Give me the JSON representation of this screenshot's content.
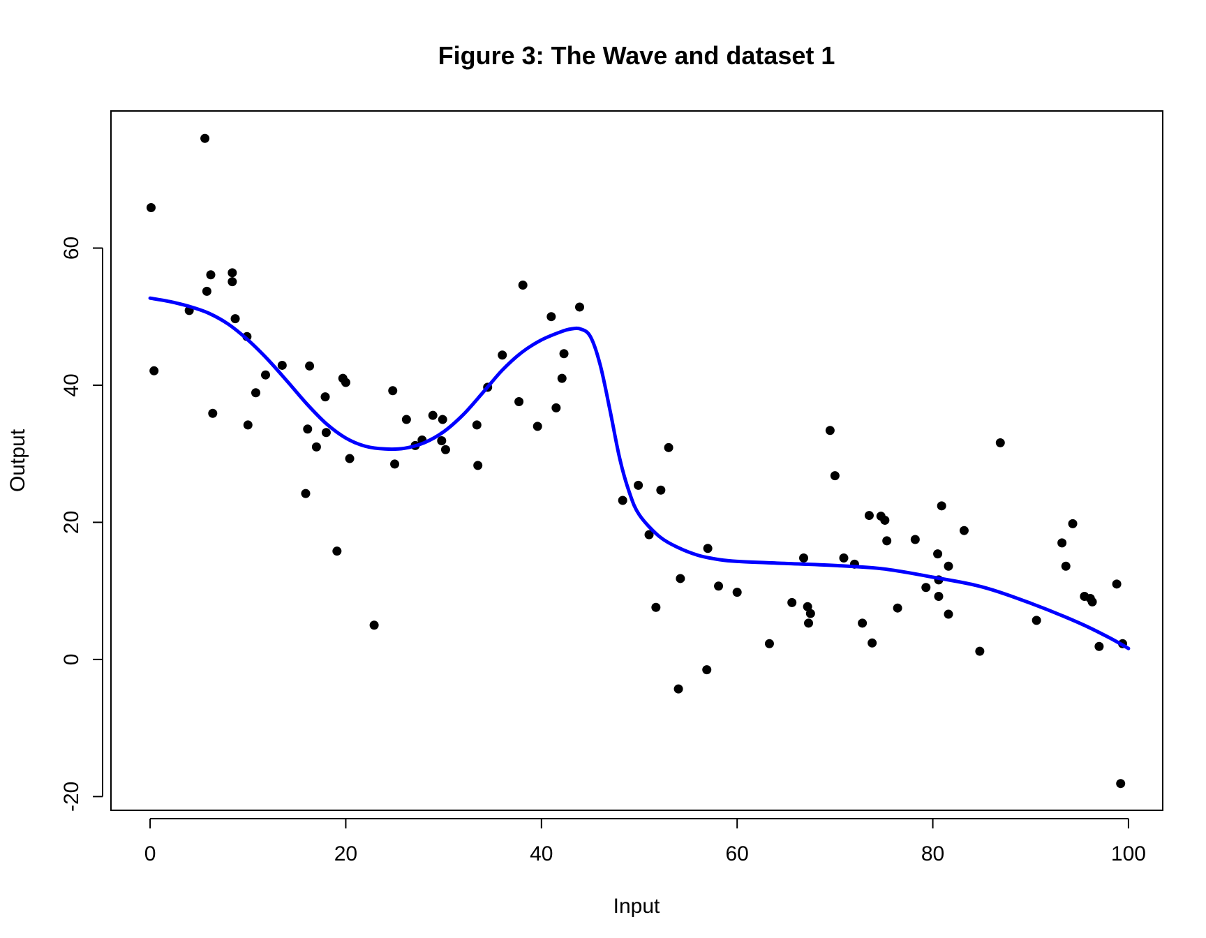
{
  "chart_data": {
    "type": "scatter",
    "title": "Figure 3: The Wave and dataset 1",
    "xlabel": "Input",
    "ylabel": "Output",
    "xlim": [
      -4,
      103.5
    ],
    "ylim": [
      -22,
      80
    ],
    "xticks": [
      0,
      20,
      40,
      60,
      80,
      100
    ],
    "yticks": [
      -20,
      0,
      20,
      40,
      60
    ],
    "grid": false,
    "points_color": "#000000",
    "curve_color": "#0000ff",
    "points": [
      [
        0.1,
        65.9
      ],
      [
        0.4,
        42.1
      ],
      [
        4.0,
        50.9
      ],
      [
        5.6,
        76.0
      ],
      [
        5.8,
        53.7
      ],
      [
        6.2,
        56.1
      ],
      [
        6.4,
        35.9
      ],
      [
        8.4,
        56.4
      ],
      [
        8.4,
        55.1
      ],
      [
        8.7,
        49.7
      ],
      [
        9.9,
        47.1
      ],
      [
        10.0,
        34.2
      ],
      [
        10.8,
        38.9
      ],
      [
        11.8,
        41.5
      ],
      [
        13.5,
        42.9
      ],
      [
        15.9,
        24.2
      ],
      [
        16.1,
        33.6
      ],
      [
        16.3,
        42.8
      ],
      [
        17.0,
        31.0
      ],
      [
        17.9,
        38.3
      ],
      [
        18.0,
        33.1
      ],
      [
        19.1,
        15.8
      ],
      [
        19.7,
        41.0
      ],
      [
        20.0,
        40.4
      ],
      [
        20.4,
        29.3
      ],
      [
        22.9,
        5.0
      ],
      [
        24.8,
        39.2
      ],
      [
        25.0,
        28.5
      ],
      [
        26.2,
        35.0
      ],
      [
        27.1,
        31.2
      ],
      [
        27.8,
        32.0
      ],
      [
        28.9,
        35.6
      ],
      [
        29.8,
        31.9
      ],
      [
        29.9,
        35.0
      ],
      [
        30.2,
        30.6
      ],
      [
        33.4,
        34.2
      ],
      [
        33.5,
        28.3
      ],
      [
        34.5,
        39.7
      ],
      [
        36.0,
        44.4
      ],
      [
        37.7,
        37.6
      ],
      [
        38.1,
        54.6
      ],
      [
        39.6,
        34.0
      ],
      [
        41.0,
        50.0
      ],
      [
        41.5,
        36.7
      ],
      [
        42.1,
        41.0
      ],
      [
        42.3,
        44.6
      ],
      [
        43.9,
        51.4
      ],
      [
        48.3,
        23.2
      ],
      [
        49.9,
        25.4
      ],
      [
        51.0,
        18.2
      ],
      [
        51.7,
        7.6
      ],
      [
        52.2,
        24.7
      ],
      [
        53.0,
        30.9
      ],
      [
        54.0,
        -4.3
      ],
      [
        54.2,
        11.8
      ],
      [
        56.9,
        -1.5
      ],
      [
        57.0,
        16.2
      ],
      [
        58.1,
        10.7
      ],
      [
        60.0,
        9.8
      ],
      [
        63.3,
        2.3
      ],
      [
        65.6,
        8.3
      ],
      [
        66.8,
        14.8
      ],
      [
        67.2,
        7.7
      ],
      [
        67.3,
        5.3
      ],
      [
        67.5,
        6.7
      ],
      [
        69.5,
        33.4
      ],
      [
        70.0,
        26.8
      ],
      [
        70.9,
        14.8
      ],
      [
        72.0,
        13.9
      ],
      [
        72.8,
        5.3
      ],
      [
        73.5,
        21.0
      ],
      [
        73.8,
        2.4
      ],
      [
        74.7,
        20.9
      ],
      [
        75.1,
        20.3
      ],
      [
        75.3,
        17.3
      ],
      [
        76.4,
        7.5
      ],
      [
        78.2,
        17.5
      ],
      [
        79.3,
        10.5
      ],
      [
        80.5,
        15.4
      ],
      [
        80.6,
        11.6
      ],
      [
        80.6,
        9.2
      ],
      [
        80.9,
        22.4
      ],
      [
        81.6,
        6.6
      ],
      [
        81.6,
        13.6
      ],
      [
        83.2,
        18.8
      ],
      [
        84.8,
        1.2
      ],
      [
        86.9,
        31.6
      ],
      [
        90.6,
        5.7
      ],
      [
        93.2,
        17.0
      ],
      [
        93.6,
        13.6
      ],
      [
        94.3,
        19.8
      ],
      [
        95.5,
        9.2
      ],
      [
        96.1,
        8.9
      ],
      [
        96.3,
        8.4
      ],
      [
        97.0,
        1.9
      ],
      [
        98.8,
        11.0
      ],
      [
        99.2,
        -18.1
      ],
      [
        99.4,
        2.3
      ]
    ],
    "curve": [
      [
        0,
        52.7
      ],
      [
        2,
        52.2
      ],
      [
        4,
        51.5
      ],
      [
        6,
        50.5
      ],
      [
        8,
        48.9
      ],
      [
        10,
        46.6
      ],
      [
        12,
        43.8
      ],
      [
        14,
        40.6
      ],
      [
        16,
        37.3
      ],
      [
        18,
        34.4
      ],
      [
        20,
        32.3
      ],
      [
        22,
        31.1
      ],
      [
        24,
        30.7
      ],
      [
        26,
        30.8
      ],
      [
        28,
        31.6
      ],
      [
        30,
        33.2
      ],
      [
        32,
        35.7
      ],
      [
        34,
        38.9
      ],
      [
        36,
        42.2
      ],
      [
        38,
        44.8
      ],
      [
        40,
        46.6
      ],
      [
        42,
        47.8
      ],
      [
        43,
        48.2
      ],
      [
        44,
        48.2
      ],
      [
        45,
        47.1
      ],
      [
        46,
        43.0
      ],
      [
        47,
        36.4
      ],
      [
        48,
        29.3
      ],
      [
        49,
        24.3
      ],
      [
        50,
        21.1
      ],
      [
        52,
        18.0
      ],
      [
        54,
        16.3
      ],
      [
        56,
        15.2
      ],
      [
        58,
        14.6
      ],
      [
        60,
        14.3
      ],
      [
        65,
        14.0
      ],
      [
        70,
        13.7
      ],
      [
        75,
        13.2
      ],
      [
        80,
        12.0
      ],
      [
        85,
        10.6
      ],
      [
        90,
        8.2
      ],
      [
        95,
        5.3
      ],
      [
        98,
        3.2
      ],
      [
        100,
        1.6
      ]
    ]
  }
}
